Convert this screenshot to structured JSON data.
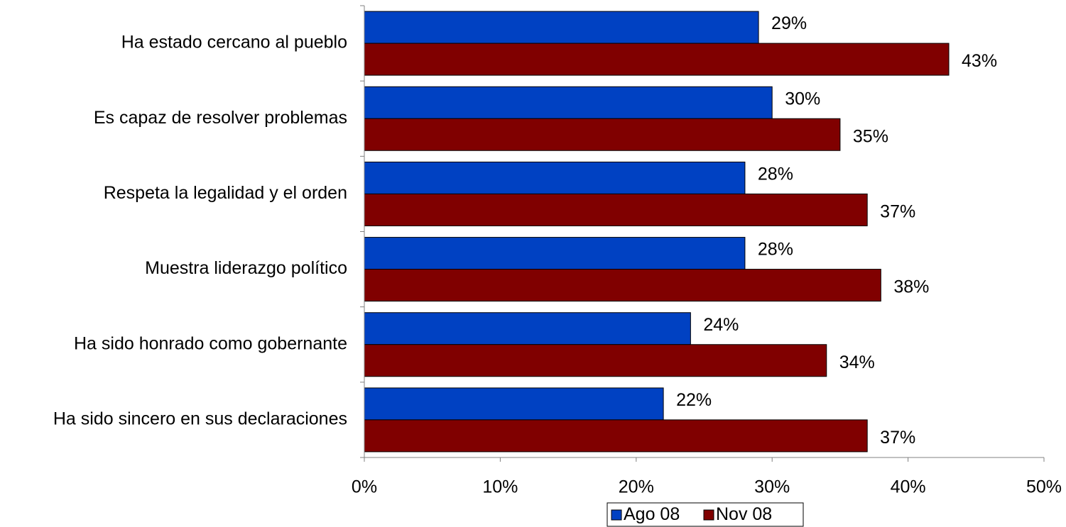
{
  "chart_data": {
    "type": "bar",
    "orientation": "horizontal",
    "categories": [
      "Ha estado cercano al pueblo",
      "Es capaz de resolver problemas",
      "Respeta la legalidad y el orden",
      "Muestra liderazgo político",
      "Ha sido honrado como gobernante",
      "Ha sido sincero en sus declaraciones"
    ],
    "series": [
      {
        "name": "Ago 08",
        "color": "#0041C2",
        "values": [
          29,
          30,
          28,
          28,
          24,
          22
        ],
        "labels": [
          "29%",
          "30%",
          "28%",
          "28%",
          "24%",
          "22%"
        ]
      },
      {
        "name": "Nov 08",
        "color": "#800000",
        "values": [
          43,
          35,
          37,
          38,
          34,
          37
        ],
        "labels": [
          "43%",
          "35%",
          "37%",
          "38%",
          "34%",
          "37%"
        ]
      }
    ],
    "xlim": [
      0,
      50
    ],
    "x_ticks": [
      "0%",
      "10%",
      "20%",
      "30%",
      "40%",
      "50%"
    ],
    "title": "",
    "xlabel": "",
    "ylabel": "",
    "grid": false,
    "legend_position": "bottom"
  }
}
